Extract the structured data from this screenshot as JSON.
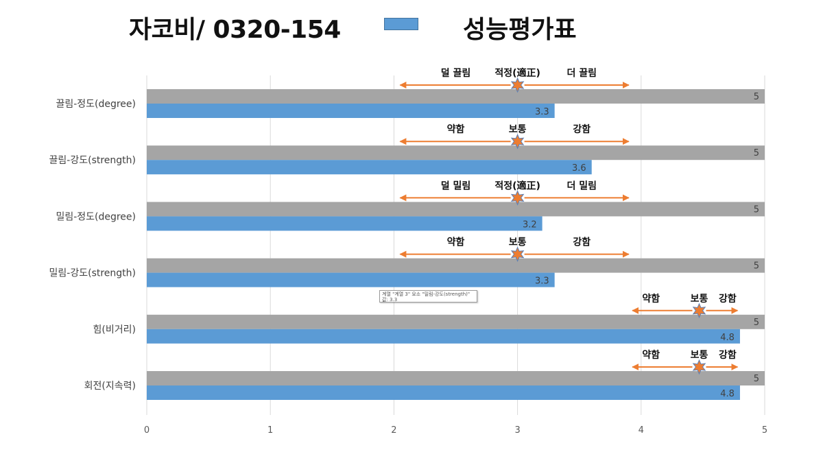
{
  "header": {
    "title": "자코비/ 0320-154",
    "legend_label": "성능평가표"
  },
  "colors": {
    "gray_bar": "#a5a5a5",
    "blue_bar": "#5b9bd5",
    "arrow": "#ed7d31",
    "star": "#ed7d31",
    "star_stroke": "#5b7fb5",
    "grid": "#d9d9d9"
  },
  "tooltip": {
    "line1": "계열 \"계열 3\" 요소 \"밀림-강도(strength)\"",
    "line2": "값: 3.3"
  },
  "chart_data": {
    "type": "bar",
    "orientation": "horizontal",
    "categories": [
      "끌림-정도(degree)",
      "끌림-강도(strength)",
      "밀림-정도(degree)",
      "밀림-강도(strength)",
      "힘(비거리)",
      "회전(지속력)"
    ],
    "series": [
      {
        "values": [
          5,
          5,
          5,
          5,
          5,
          5
        ]
      },
      {
        "values": [
          3.3,
          3.6,
          3.2,
          3.3,
          4.8,
          4.8
        ]
      }
    ],
    "xlim": [
      0,
      5
    ],
    "xticks": [
      "0",
      "1",
      "2",
      "3",
      "4",
      "5"
    ],
    "grid": true,
    "annotations": [
      {
        "left": "덜 끌림",
        "mid": "적정(適正)",
        "right": "더 끌림",
        "start": 2.05,
        "marker": 3.0,
        "end": 3.9
      },
      {
        "left": "약함",
        "mid": "보통",
        "right": "강함",
        "start": 2.05,
        "marker": 3.0,
        "end": 3.9
      },
      {
        "left": "덜 밀림",
        "mid": "적정(適正)",
        "right": "더 밀림",
        "start": 2.05,
        "marker": 3.0,
        "end": 3.9
      },
      {
        "left": "약함",
        "mid": "보통",
        "right": "강함",
        "start": 2.05,
        "marker": 3.0,
        "end": 3.9
      },
      {
        "left": "약함",
        "mid": "보통",
        "right": "강함",
        "start": 3.93,
        "marker": 4.47,
        "end": 4.78
      },
      {
        "left": "약함",
        "mid": "보통",
        "right": "강함",
        "start": 3.93,
        "marker": 4.47,
        "end": 4.78
      }
    ]
  }
}
